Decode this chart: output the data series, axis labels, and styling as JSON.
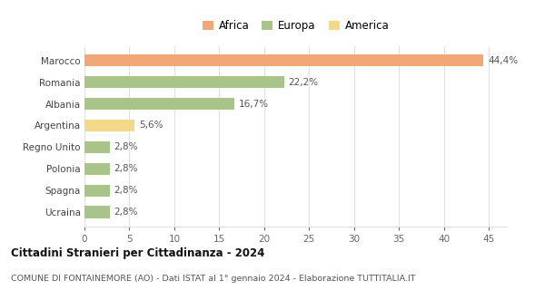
{
  "categories": [
    "Ucraina",
    "Spagna",
    "Polonia",
    "Regno Unito",
    "Argentina",
    "Albania",
    "Romania",
    "Marocco"
  ],
  "values": [
    2.8,
    2.8,
    2.8,
    2.8,
    5.6,
    16.7,
    22.2,
    44.4
  ],
  "labels": [
    "2,8%",
    "2,8%",
    "2,8%",
    "2,8%",
    "5,6%",
    "16,7%",
    "22,2%",
    "44,4%"
  ],
  "colors": [
    "#a8c48a",
    "#a8c48a",
    "#a8c48a",
    "#a8c48a",
    "#f5d98b",
    "#a8c48a",
    "#a8c48a",
    "#f0a878"
  ],
  "legend": [
    {
      "label": "Africa",
      "color": "#f0a878"
    },
    {
      "label": "Europa",
      "color": "#a8c48a"
    },
    {
      "label": "America",
      "color": "#f5d98b"
    }
  ],
  "xlim": [
    0,
    47
  ],
  "xticks": [
    0,
    5,
    10,
    15,
    20,
    25,
    30,
    35,
    40,
    45
  ],
  "title": "Cittadini Stranieri per Cittadinanza - 2024",
  "subtitle": "COMUNE DI FONTAINEMORE (AO) - Dati ISTAT al 1° gennaio 2024 - Elaborazione TUTTITALIA.IT",
  "background_color": "#ffffff",
  "grid_color": "#e0e0e0"
}
